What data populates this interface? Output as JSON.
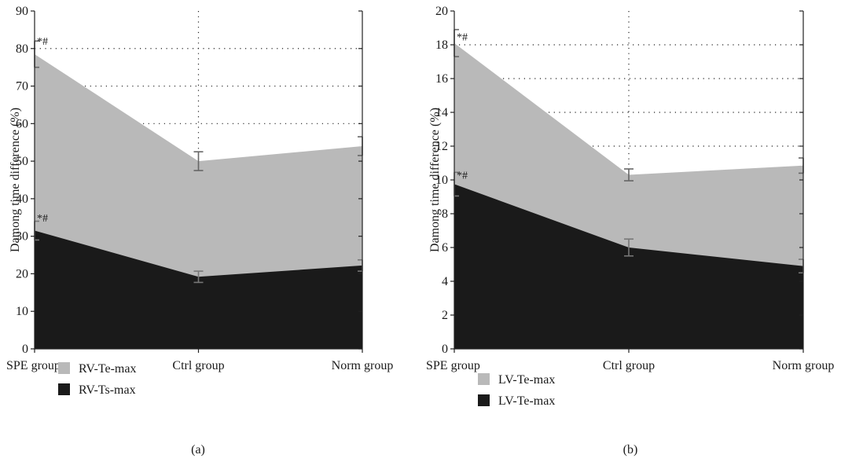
{
  "chart_data": [
    {
      "type": "area",
      "panel_label": "(a)",
      "ylabel": "Damong time difference (%)",
      "categories": [
        "SPE group",
        "Ctrl group",
        "Norm group"
      ],
      "ylim": [
        0,
        90
      ],
      "yticks": [
        0,
        10,
        20,
        30,
        40,
        50,
        60,
        70,
        80,
        90
      ],
      "grid": "dotted",
      "stacked_as_overlap": true,
      "series": [
        {
          "name": "RV-Te-max",
          "values": [
            78.5,
            50,
            54
          ],
          "err": [
            3.5,
            2.5,
            2.5
          ],
          "color": "#b9b9b9",
          "err_color": "#666666"
        },
        {
          "name": "RV-Ts-max",
          "values": [
            31.5,
            19.2,
            22.2
          ],
          "err": [
            2.5,
            1.5,
            1.5
          ],
          "color": "#1a1a1a",
          "err_color": "#777777"
        }
      ],
      "annotations": [
        {
          "category": "SPE group",
          "value": 82,
          "text": "*#"
        },
        {
          "category": "SPE group",
          "value": 35,
          "text": "*#"
        }
      ],
      "legend": [
        "RV-Te-max",
        "RV-Ts-max"
      ]
    },
    {
      "type": "area",
      "panel_label": "(b)",
      "ylabel": "Damong time difference (%)",
      "categories": [
        "SPE group",
        "Ctrl group",
        "Norm group"
      ],
      "ylim": [
        0,
        20
      ],
      "yticks": [
        0,
        2,
        4,
        6,
        8,
        10,
        12,
        14,
        16,
        18,
        20
      ],
      "grid": "dotted",
      "stacked_as_overlap": true,
      "series": [
        {
          "name": "LV-Te-max",
          "values": [
            18.1,
            10.3,
            10.85
          ],
          "err": [
            0.8,
            0.35,
            0.45
          ],
          "color": "#b9b9b9",
          "err_color": "#666666"
        },
        {
          "name": "LV-Te-max",
          "values": [
            9.75,
            6.0,
            4.9
          ],
          "err": [
            0.7,
            0.5,
            0.4
          ],
          "color": "#1a1a1a",
          "err_color": "#777777"
        }
      ],
      "annotations": [
        {
          "category": "SPE group",
          "value": 18.5,
          "text": "*#"
        },
        {
          "category": "SPE group",
          "value": 10.3,
          "text": "*#"
        }
      ],
      "legend": [
        "LV-Te-max",
        "LV-Te-max"
      ]
    }
  ]
}
